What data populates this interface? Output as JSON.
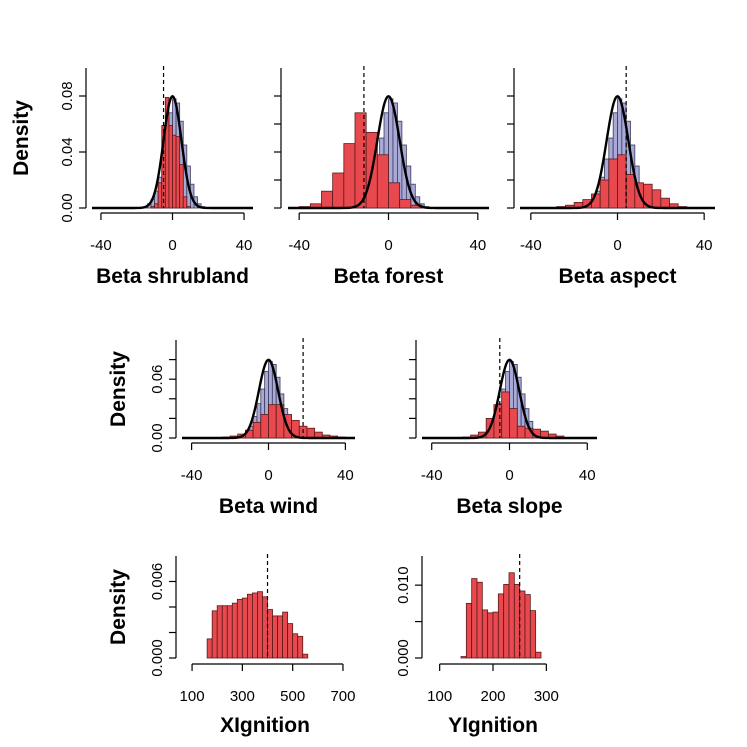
{
  "chart_data": [
    {
      "type": "bar",
      "title": "",
      "xlabel": "Beta shrubland",
      "ylabel": "Density",
      "xlim": [
        -45,
        45
      ],
      "ylim": [
        0,
        0.1
      ],
      "xticks": [
        "-40",
        "0",
        "40"
      ],
      "yticks": [
        "0.00",
        "0.04",
        "0.08"
      ],
      "dashed_line_x": -5,
      "prior_normal": {
        "mean": 0,
        "sd": 5
      },
      "series": [
        {
          "color": "#a9a9d8",
          "bin_width": 2,
          "bins": [
            [
              -16,
              0.001
            ],
            [
              -14,
              0.003
            ],
            [
              -12,
              0.006
            ],
            [
              -10,
              0.012
            ],
            [
              -8,
              0.022
            ],
            [
              -6,
              0.035
            ],
            [
              -4,
              0.05
            ],
            [
              -2,
              0.068
            ],
            [
              0,
              0.078
            ],
            [
              2,
              0.075
            ],
            [
              4,
              0.062
            ],
            [
              6,
              0.045
            ],
            [
              8,
              0.03
            ],
            [
              10,
              0.017
            ],
            [
              12,
              0.008
            ],
            [
              14,
              0.003
            ],
            [
              16,
              0.001
            ]
          ]
        },
        {
          "color": "#e8494f",
          "bin_width": 2,
          "bins": [
            [
              -12,
              0.001
            ],
            [
              -10,
              0.003
            ],
            [
              -8,
              0.018
            ],
            [
              -6,
              0.059
            ],
            [
              -4,
              0.079
            ],
            [
              -2,
              0.059
            ],
            [
              0,
              0.052
            ],
            [
              2,
              0.051
            ],
            [
              4,
              0.031
            ],
            [
              6,
              0.008
            ],
            [
              8,
              0.001
            ]
          ]
        }
      ]
    },
    {
      "type": "bar",
      "title": "",
      "xlabel": "Beta forest",
      "ylabel": "",
      "xlim": [
        -45,
        45
      ],
      "ylim": [
        0,
        0.1
      ],
      "xticks": [
        "-40",
        "0",
        "40"
      ],
      "yticks": [],
      "dashed_line_x": -11,
      "prior_normal": {
        "mean": 0,
        "sd": 5
      },
      "series": [
        {
          "color": "#a9a9d8",
          "bin_width": 2,
          "bins": [
            [
              -16,
              0.001
            ],
            [
              -14,
              0.003
            ],
            [
              -12,
              0.006
            ],
            [
              -10,
              0.012
            ],
            [
              -8,
              0.022
            ],
            [
              -6,
              0.035
            ],
            [
              -4,
              0.05
            ],
            [
              -2,
              0.068
            ],
            [
              0,
              0.078
            ],
            [
              2,
              0.075
            ],
            [
              4,
              0.062
            ],
            [
              6,
              0.045
            ],
            [
              8,
              0.03
            ],
            [
              10,
              0.017
            ],
            [
              12,
              0.008
            ],
            [
              14,
              0.003
            ],
            [
              16,
              0.001
            ]
          ]
        },
        {
          "color": "#e8494f",
          "bin_width": 5,
          "bins": [
            [
              -40,
              0.001
            ],
            [
              -35,
              0.003
            ],
            [
              -30,
              0.012
            ],
            [
              -25,
              0.025
            ],
            [
              -20,
              0.046
            ],
            [
              -15,
              0.068
            ],
            [
              -10,
              0.054
            ],
            [
              -5,
              0.038
            ],
            [
              0,
              0.018
            ],
            [
              5,
              0.006
            ],
            [
              10,
              0.002
            ]
          ]
        }
      ]
    },
    {
      "type": "bar",
      "title": "",
      "xlabel": "Beta aspect",
      "ylabel": "",
      "xlim": [
        -45,
        45
      ],
      "ylim": [
        0,
        0.1
      ],
      "xticks": [
        "-40",
        "0",
        "40"
      ],
      "yticks": [],
      "dashed_line_x": 4,
      "prior_normal": {
        "mean": 0,
        "sd": 5
      },
      "series": [
        {
          "color": "#a9a9d8",
          "bin_width": 2,
          "bins": [
            [
              -16,
              0.001
            ],
            [
              -14,
              0.003
            ],
            [
              -12,
              0.006
            ],
            [
              -10,
              0.012
            ],
            [
              -8,
              0.022
            ],
            [
              -6,
              0.035
            ],
            [
              -4,
              0.05
            ],
            [
              -2,
              0.068
            ],
            [
              0,
              0.078
            ],
            [
              2,
              0.075
            ],
            [
              4,
              0.062
            ],
            [
              6,
              0.045
            ],
            [
              8,
              0.03
            ],
            [
              10,
              0.017
            ],
            [
              12,
              0.008
            ],
            [
              14,
              0.003
            ],
            [
              16,
              0.001
            ]
          ]
        },
        {
          "color": "#e8494f",
          "bin_width": 4,
          "bins": [
            [
              -28,
              0.001
            ],
            [
              -24,
              0.002
            ],
            [
              -20,
              0.004
            ],
            [
              -16,
              0.006
            ],
            [
              -12,
              0.01
            ],
            [
              -8,
              0.02
            ],
            [
              -4,
              0.035
            ],
            [
              0,
              0.038
            ],
            [
              4,
              0.024
            ],
            [
              8,
              0.018
            ],
            [
              12,
              0.017
            ],
            [
              16,
              0.013
            ],
            [
              20,
              0.007
            ],
            [
              24,
              0.003
            ],
            [
              28,
              0.001
            ]
          ]
        }
      ]
    },
    {
      "type": "bar",
      "title": "",
      "xlabel": "Beta wind",
      "ylabel": "Density",
      "xlim": [
        -45,
        45
      ],
      "ylim": [
        0,
        0.1
      ],
      "xticks": [
        "-40",
        "0",
        "40"
      ],
      "yticks": [
        "0.00",
        "0.06"
      ],
      "dashed_line_x": 18,
      "prior_normal": {
        "mean": 0,
        "sd": 5
      },
      "series": [
        {
          "color": "#a9a9d8",
          "bin_width": 2,
          "bins": [
            [
              -16,
              0.001
            ],
            [
              -14,
              0.003
            ],
            [
              -12,
              0.006
            ],
            [
              -10,
              0.012
            ],
            [
              -8,
              0.022
            ],
            [
              -6,
              0.035
            ],
            [
              -4,
              0.05
            ],
            [
              -2,
              0.068
            ],
            [
              0,
              0.078
            ],
            [
              2,
              0.075
            ],
            [
              4,
              0.062
            ],
            [
              6,
              0.045
            ],
            [
              8,
              0.03
            ],
            [
              10,
              0.017
            ],
            [
              12,
              0.008
            ],
            [
              14,
              0.003
            ],
            [
              16,
              0.001
            ]
          ]
        },
        {
          "color": "#e8494f",
          "bin_width": 4,
          "bins": [
            [
              -24,
              0.001
            ],
            [
              -20,
              0.002
            ],
            [
              -16,
              0.004
            ],
            [
              -12,
              0.008
            ],
            [
              -8,
              0.016
            ],
            [
              -4,
              0.024
            ],
            [
              0,
              0.034
            ],
            [
              4,
              0.034
            ],
            [
              8,
              0.024
            ],
            [
              12,
              0.018
            ],
            [
              16,
              0.012
            ],
            [
              20,
              0.01
            ],
            [
              24,
              0.006
            ],
            [
              28,
              0.003
            ],
            [
              32,
              0.002
            ],
            [
              36,
              0.001
            ]
          ]
        }
      ]
    },
    {
      "type": "bar",
      "title": "",
      "xlabel": "Beta slope",
      "ylabel": "",
      "xlim": [
        -45,
        45
      ],
      "ylim": [
        0,
        0.1
      ],
      "xticks": [
        "-40",
        "0",
        "40"
      ],
      "yticks": [],
      "dashed_line_x": -5,
      "prior_normal": {
        "mean": 0,
        "sd": 5
      },
      "series": [
        {
          "color": "#a9a9d8",
          "bin_width": 2,
          "bins": [
            [
              -16,
              0.001
            ],
            [
              -14,
              0.003
            ],
            [
              -12,
              0.006
            ],
            [
              -10,
              0.012
            ],
            [
              -8,
              0.022
            ],
            [
              -6,
              0.035
            ],
            [
              -4,
              0.05
            ],
            [
              -2,
              0.068
            ],
            [
              0,
              0.078
            ],
            [
              2,
              0.075
            ],
            [
              4,
              0.062
            ],
            [
              6,
              0.045
            ],
            [
              8,
              0.03
            ],
            [
              10,
              0.017
            ],
            [
              12,
              0.008
            ],
            [
              14,
              0.003
            ],
            [
              16,
              0.001
            ]
          ]
        },
        {
          "color": "#e8494f",
          "bin_width": 4,
          "bins": [
            [
              -24,
              0.001
            ],
            [
              -20,
              0.003
            ],
            [
              -16,
              0.006
            ],
            [
              -12,
              0.02
            ],
            [
              -8,
              0.034
            ],
            [
              -4,
              0.047
            ],
            [
              0,
              0.03
            ],
            [
              4,
              0.012
            ],
            [
              8,
              0.01
            ],
            [
              12,
              0.009
            ],
            [
              16,
              0.007
            ],
            [
              20,
              0.004
            ],
            [
              24,
              0.002
            ]
          ]
        }
      ]
    },
    {
      "type": "bar",
      "title": "",
      "xlabel": "XIgnition",
      "ylabel": "Density",
      "xlim": [
        60,
        720
      ],
      "ylim": [
        0,
        0.008
      ],
      "xticks": [
        "100",
        "300",
        "500",
        "700"
      ],
      "yticks": [
        "0.000",
        "0.006"
      ],
      "dashed_line_x": 400,
      "series": [
        {
          "color": "#e8494f",
          "bin_width": 20,
          "bins": [
            [
              160,
              0.0015
            ],
            [
              180,
              0.0037
            ],
            [
              200,
              0.0041
            ],
            [
              220,
              0.0041
            ],
            [
              240,
              0.0041
            ],
            [
              260,
              0.0043
            ],
            [
              280,
              0.0046
            ],
            [
              300,
              0.0047
            ],
            [
              320,
              0.005
            ],
            [
              340,
              0.0051
            ],
            [
              360,
              0.0052
            ],
            [
              380,
              0.0048
            ],
            [
              400,
              0.0038
            ],
            [
              420,
              0.0033
            ],
            [
              440,
              0.0033
            ],
            [
              460,
              0.0036
            ],
            [
              480,
              0.0027
            ],
            [
              500,
              0.0019
            ],
            [
              520,
              0.0017
            ],
            [
              540,
              0.0003
            ]
          ]
        }
      ]
    },
    {
      "type": "bar",
      "title": "",
      "xlabel": "YIgnition",
      "ylabel": "",
      "xlim": [
        80,
        320
      ],
      "ylim": [
        0,
        0.014
      ],
      "xticks": [
        "100",
        "200",
        "300"
      ],
      "yticks": [
        "0.000",
        "0.010"
      ],
      "dashed_line_x": 250,
      "series": [
        {
          "color": "#e8494f",
          "bin_width": 10,
          "bins": [
            [
              140,
              0.0002
            ],
            [
              150,
              0.0075
            ],
            [
              160,
              0.0109
            ],
            [
              170,
              0.0104
            ],
            [
              180,
              0.0066
            ],
            [
              190,
              0.0062
            ],
            [
              200,
              0.0063
            ],
            [
              210,
              0.0088
            ],
            [
              220,
              0.0101
            ],
            [
              230,
              0.0117
            ],
            [
              240,
              0.0101
            ],
            [
              250,
              0.0092
            ],
            [
              260,
              0.0087
            ],
            [
              270,
              0.0065
            ],
            [
              280,
              0.0008
            ]
          ]
        }
      ]
    }
  ]
}
